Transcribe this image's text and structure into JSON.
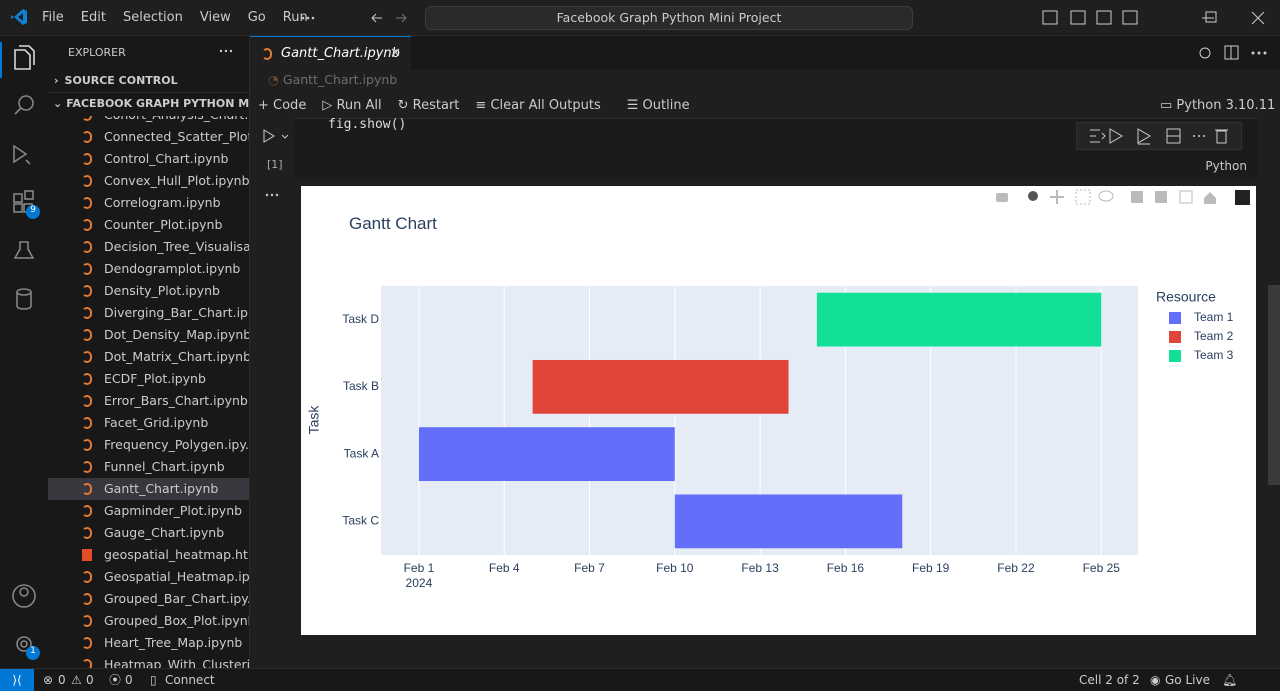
{
  "title_bar": {
    "menu": [
      "File",
      "Edit",
      "Selection",
      "View",
      "Go",
      "Run"
    ],
    "search": "Facebook Graph Python Mini Project"
  },
  "sidebar": {
    "title": "EXPLORER",
    "sections": [
      "SOURCE CONTROL",
      "FACEBOOK GRAPH PYTHON MI..."
    ],
    "files": [
      {
        "name": "Cohort_Analysis_Chart.i..."
      },
      {
        "name": "Connected_Scatter_Plot..."
      },
      {
        "name": "Control_Chart.ipynb"
      },
      {
        "name": "Convex_Hull_Plot.ipynb"
      },
      {
        "name": "Correlogram.ipynb"
      },
      {
        "name": "Counter_Plot.ipynb"
      },
      {
        "name": "Decision_Tree_Visualisa..."
      },
      {
        "name": "Dendogramplot.ipynb"
      },
      {
        "name": "Density_Plot.ipynb"
      },
      {
        "name": "Diverging_Bar_Chart.ip..."
      },
      {
        "name": "Dot_Density_Map.ipynb"
      },
      {
        "name": "Dot_Matrix_Chart.ipynb"
      },
      {
        "name": "ECDF_Plot.ipynb"
      },
      {
        "name": "Error_Bars_Chart.ipynb"
      },
      {
        "name": "Facet_Grid.ipynb"
      },
      {
        "name": "Frequency_Polygen.ipy..."
      },
      {
        "name": "Funnel_Chart.ipynb"
      },
      {
        "name": "Gantt_Chart.ipynb",
        "selected": true
      },
      {
        "name": "Gapminder_Plot.ipynb"
      },
      {
        "name": "Gauge_Chart.ipynb"
      },
      {
        "name": "geospatial_heatmap.html"
      },
      {
        "name": "Geospatial_Heatmap.ip..."
      },
      {
        "name": "Grouped_Bar_Chart.ipy..."
      },
      {
        "name": "Grouped_Box_Plot.ipynb"
      },
      {
        "name": "Heart_Tree_Map.ipynb"
      },
      {
        "name": "Heatmap_With_Clusteri..."
      }
    ]
  },
  "activity_badges": [
    "9",
    "1"
  ],
  "tab": "Gantt_Chart.ipynb",
  "breadcrumb": "Gantt_Chart.ipynb",
  "toolbar": {
    "items": [
      "Code",
      "Run All",
      "Restart",
      "Clear All Outputs",
      "Outline"
    ],
    "kernel": "Python 3.10.11"
  },
  "cell": {
    "code": "fig.show()",
    "execution_count": "[1]",
    "language": "Python"
  },
  "chart_data": {
    "type": "gantt",
    "title": "Gantt Chart",
    "y_label": "Task",
    "categories": [
      "Task D",
      "Task B",
      "Task A",
      "Task C"
    ],
    "tasks": [
      {
        "start": "2024-02-15",
        "end": "2024-02-25",
        "resource": "Team 3"
      },
      {
        "start": "2024-02-05",
        "end": "2024-02-14",
        "resource": "Team 2"
      },
      {
        "start": "2024-02-01",
        "end": "2024-02-10",
        "resource": "Team 1"
      },
      {
        "start": "2024-02-10",
        "end": "2024-02-18",
        "resource": "Team 1"
      }
    ],
    "legend_title": "Resource",
    "series": [
      {
        "name": "Team 1",
        "color": "#636efa"
      },
      {
        "name": "Team 2",
        "color": "#e0453c"
      },
      {
        "name": "Team 3",
        "color": "#12e096"
      }
    ],
    "xlim": [
      "2024-01-30T16:00",
      "2024-02-26T07:00"
    ],
    "xticks": [
      {
        "value": "2024-02-01",
        "label": "Feb 1"
      },
      {
        "value": "2024-02-04",
        "label": "Feb 4"
      },
      {
        "value": "2024-02-07",
        "label": "Feb 7"
      },
      {
        "value": "2024-02-10",
        "label": "Feb 10"
      },
      {
        "value": "2024-02-13",
        "label": "Feb 13"
      },
      {
        "value": "2024-02-16",
        "label": "Feb 16"
      },
      {
        "value": "2024-02-19",
        "label": "Feb 19"
      },
      {
        "value": "2024-02-22",
        "label": "Feb 22"
      },
      {
        "value": "2024-02-25",
        "label": "Feb 25"
      }
    ],
    "xtick_year": "2024",
    "grid": true,
    "legend": "top-right"
  },
  "status_bar": {
    "errors": 0,
    "warnings": 0,
    "ports": 0,
    "connect": "Connect",
    "cell": "Cell 2 of 2",
    "go_live": "Go Live"
  }
}
